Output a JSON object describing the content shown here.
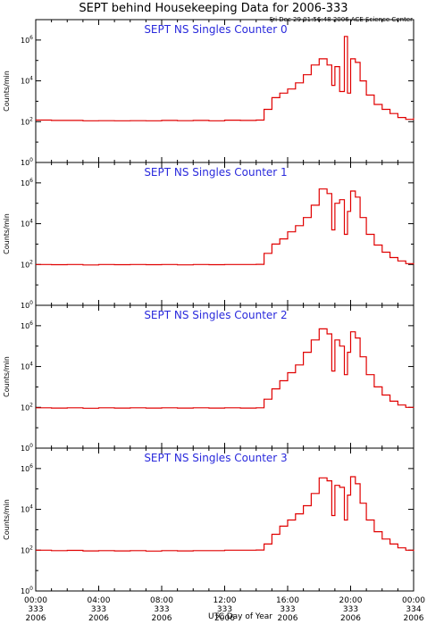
{
  "figure": {
    "title": "SEPT behind Housekeeping Data for 2006-333",
    "timestamp": "Fri Dec 29 01:56:48 2006 ACE Science Center",
    "xlabel": "UTC Day of Year",
    "ylabel": "Counts/min",
    "y_tick_labels": [
      {
        "base": "10",
        "exp": "0"
      },
      {
        "base": "10",
        "exp": "2"
      },
      {
        "base": "10",
        "exp": "4"
      },
      {
        "base": "10",
        "exp": "6"
      }
    ],
    "x_tick_labels": [
      {
        "time": "00:00",
        "doy": "333",
        "year": "2006"
      },
      {
        "time": "04:00",
        "doy": "333",
        "year": "2006"
      },
      {
        "time": "08:00",
        "doy": "333",
        "year": "2006"
      },
      {
        "time": "12:00",
        "doy": "333",
        "year": "2006"
      },
      {
        "time": "16:00",
        "doy": "333",
        "year": "2006"
      },
      {
        "time": "20:00",
        "doy": "333",
        "year": "2006"
      },
      {
        "time": "00:00",
        "doy": "334",
        "year": "2006"
      }
    ]
  },
  "colors": {
    "series": "#e00000",
    "panel_title": "#2a2adc",
    "axes": "#000000"
  },
  "chart_data": [
    {
      "type": "line",
      "title": "SEPT NS Singles Counter 0",
      "xlabel": "UTC Day of Year",
      "ylabel": "Counts/min",
      "y_scale": "log",
      "ylim": [
        1,
        10000000
      ],
      "xlim": [
        0,
        24
      ],
      "x_unit": "hours UTC on day 333",
      "series": [
        {
          "x": [
            0,
            1,
            2,
            3,
            4,
            5,
            6,
            7,
            8,
            9,
            10,
            11,
            12,
            13,
            14,
            14.5,
            15,
            15.5,
            16,
            16.5,
            17,
            17.5,
            18,
            18.5,
            18.8,
            19,
            19.3,
            19.6,
            19.8,
            20,
            20.3,
            20.6,
            21,
            21.5,
            22,
            22.5,
            23,
            23.5,
            24
          ],
          "y": [
            120,
            115,
            115,
            110,
            112,
            110,
            112,
            110,
            115,
            112,
            115,
            110,
            118,
            115,
            120,
            400,
            1500,
            2500,
            4000,
            8000,
            20000,
            60000,
            120000,
            60000,
            6000,
            50000,
            3000,
            1500000,
            2500,
            120000,
            80000,
            10000,
            2000,
            700,
            400,
            250,
            160,
            130,
            150
          ]
        }
      ]
    },
    {
      "type": "line",
      "title": "SEPT NS Singles Counter 1",
      "xlabel": "UTC Day of Year",
      "ylabel": "Counts/min",
      "y_scale": "log",
      "ylim": [
        1,
        10000000
      ],
      "xlim": [
        0,
        24
      ],
      "x_unit": "hours UTC on day 333",
      "series": [
        {
          "x": [
            0,
            1,
            2,
            3,
            4,
            5,
            6,
            7,
            8,
            9,
            10,
            11,
            12,
            13,
            14,
            14.5,
            15,
            15.5,
            16,
            16.5,
            17,
            17.5,
            18,
            18.5,
            18.8,
            19,
            19.3,
            19.6,
            19.8,
            20,
            20.3,
            20.6,
            21,
            21.5,
            22,
            22.5,
            23,
            23.5,
            24
          ],
          "y": [
            100,
            98,
            100,
            95,
            100,
            98,
            100,
            98,
            100,
            96,
            100,
            98,
            100,
            100,
            102,
            350,
            1000,
            1800,
            4000,
            8000,
            20000,
            80000,
            500000,
            300000,
            5000,
            100000,
            150000,
            3000,
            40000,
            400000,
            200000,
            20000,
            3000,
            900,
            400,
            220,
            150,
            110,
            100
          ]
        }
      ]
    },
    {
      "type": "line",
      "title": "SEPT NS Singles Counter 2",
      "xlabel": "UTC Day of Year",
      "ylabel": "Counts/min",
      "y_scale": "log",
      "ylim": [
        1,
        10000000
      ],
      "xlim": [
        0,
        24
      ],
      "x_unit": "hours UTC on day 333",
      "series": [
        {
          "x": [
            0,
            1,
            2,
            3,
            4,
            5,
            6,
            7,
            8,
            9,
            10,
            11,
            12,
            13,
            14,
            14.5,
            15,
            15.5,
            16,
            16.5,
            17,
            17.5,
            18,
            18.5,
            18.8,
            19,
            19.3,
            19.6,
            19.8,
            20,
            20.3,
            20.6,
            21,
            21.5,
            22,
            22.5,
            23,
            23.5,
            24
          ],
          "y": [
            95,
            92,
            95,
            90,
            95,
            92,
            95,
            92,
            95,
            92,
            95,
            92,
            95,
            92,
            95,
            250,
            800,
            2000,
            5000,
            12000,
            50000,
            200000,
            700000,
            400000,
            6000,
            200000,
            100000,
            4000,
            50000,
            500000,
            250000,
            30000,
            4000,
            1000,
            400,
            200,
            130,
            100,
            95
          ]
        }
      ]
    },
    {
      "type": "line",
      "title": "SEPT NS Singles Counter 3",
      "xlabel": "UTC Day of Year",
      "ylabel": "Counts/min",
      "y_scale": "log",
      "ylim": [
        1,
        10000000
      ],
      "xlim": [
        0,
        24
      ],
      "x_unit": "hours UTC on day 333",
      "series": [
        {
          "x": [
            0,
            1,
            2,
            3,
            4,
            5,
            6,
            7,
            8,
            9,
            10,
            11,
            12,
            13,
            14,
            14.5,
            15,
            15.5,
            16,
            16.5,
            17,
            17.5,
            18,
            18.5,
            18.8,
            19,
            19.3,
            19.6,
            19.8,
            20,
            20.3,
            20.6,
            21,
            21.5,
            22,
            22.5,
            23,
            23.5,
            24
          ],
          "y": [
            100,
            95,
            98,
            92,
            95,
            92,
            95,
            90,
            95,
            92,
            95,
            95,
            100,
            100,
            102,
            200,
            600,
            1500,
            3000,
            6000,
            15000,
            60000,
            350000,
            250000,
            5000,
            150000,
            120000,
            3000,
            50000,
            400000,
            180000,
            20000,
            3000,
            800,
            350,
            200,
            130,
            100,
            90
          ]
        }
      ]
    }
  ]
}
